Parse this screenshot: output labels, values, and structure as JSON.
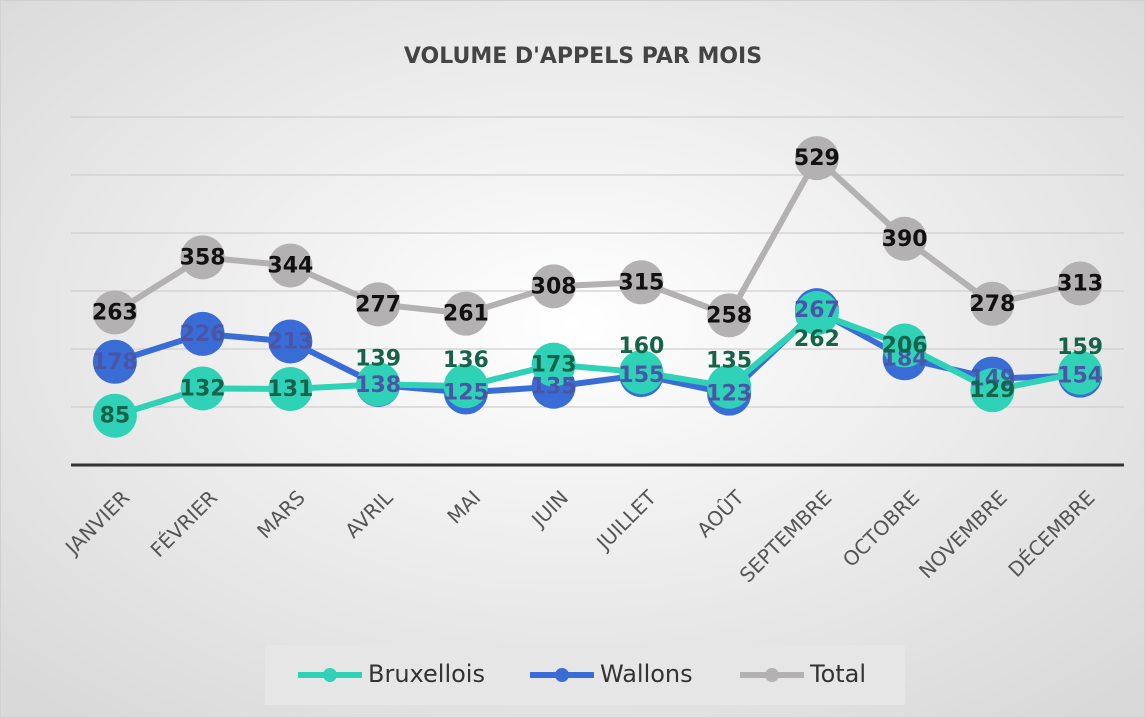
{
  "chart_data": {
    "type": "line",
    "title": "VOLUME D'APPELS PAR MOIS",
    "categories": [
      "JANVIER",
      "FÉVRIER",
      "MARS",
      "AVRIL",
      "MAI",
      "JUIN",
      "JUILLET",
      "AOÛT",
      "SEPTEMBRE",
      "OCTOBRE",
      "NOVEMBRE",
      "DÉCEMBRE"
    ],
    "series": [
      {
        "name": "Bruxellois",
        "color": "#2fd2b6",
        "label_color": "#17624a",
        "values": [
          85,
          132,
          131,
          139,
          136,
          173,
          160,
          135,
          262,
          206,
          129,
          159
        ]
      },
      {
        "name": "Wallons",
        "color": "#3a6cd6",
        "label_color": "#4a55a8",
        "values": [
          178,
          226,
          213,
          138,
          125,
          135,
          155,
          123,
          267,
          184,
          149,
          154
        ]
      },
      {
        "name": "Total",
        "color": "#b3b1b1",
        "label_color": "#111111",
        "values": [
          263,
          358,
          344,
          277,
          261,
          308,
          315,
          258,
          529,
          390,
          278,
          313
        ]
      }
    ],
    "ylim": [
      0,
      600
    ],
    "yticks": [
      0,
      100,
      200,
      300,
      400,
      500,
      600
    ],
    "grid": true
  }
}
